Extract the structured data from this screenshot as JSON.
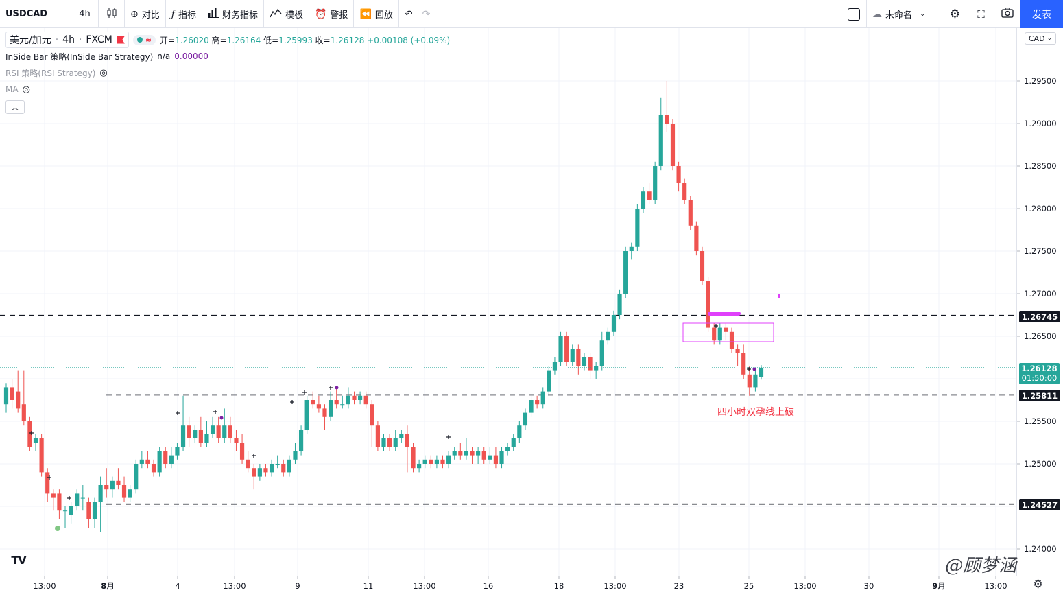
{
  "toolbar": {
    "symbol": "USDCAD",
    "interval": "4h",
    "compare": "对比",
    "indicators": "指标",
    "financials": "财务指标",
    "templates": "模板",
    "alert": "警报",
    "replay": "回放",
    "layout_name": "未命名",
    "publish": "发表"
  },
  "legend": {
    "symbol_name": "美元/加元",
    "interval": "4h",
    "exchange": "FXCM",
    "open_label": "开=",
    "open": "1.26020",
    "high_label": "高=",
    "high": "1.26164",
    "low_label": "低=",
    "low": "1.25993",
    "close_label": "收=",
    "close": "1.26128",
    "change": "+0.00108 (+0.09%)",
    "study1": "InSide Bar 策略(InSide Bar Strategy)",
    "study1_na": "n/a",
    "study1_value": "0.00000",
    "study2": "RSI 策略(RSI Strategy)",
    "study3": "MA"
  },
  "price_axis": {
    "currency": "CAD",
    "ticks": [
      "1.29500",
      "1.29000",
      "1.28500",
      "1.28000",
      "1.27500",
      "1.27000",
      "1.26500",
      "1.25500",
      "1.25000",
      "1.24000"
    ],
    "levels": [
      "1.26745",
      "1.25811",
      "1.24527"
    ],
    "current_price": "1.26128",
    "countdown": "01:50:00"
  },
  "time_axis": {
    "ticks": [
      "13:00",
      "8月",
      "4",
      "13:00",
      "9",
      "11",
      "13:00",
      "16",
      "18",
      "13:00",
      "23",
      "25",
      "13:00",
      "30",
      "9月",
      "13:00"
    ]
  },
  "annotation": "四小时双孕线上破",
  "watermark": "@顾梦涵",
  "logo": "TV",
  "colors": {
    "up": "#26a69a",
    "down": "#ef5350",
    "accent": "#2962ff",
    "box": "#e040fb",
    "annotation": "#f23645"
  },
  "chart_data": {
    "type": "candlestick",
    "ylim": [
      1.2385,
      1.2985
    ],
    "horizontal_levels": [
      1.26745,
      1.25811,
      1.24527
    ],
    "x_ticks": [
      "13:00",
      "8月",
      "4",
      "13:00",
      "9",
      "11",
      "13:00",
      "16",
      "18",
      "13:00",
      "23",
      "25",
      "13:00",
      "30",
      "9月",
      "13:00"
    ],
    "candles": [
      [
        1.257,
        1.259,
        1.256,
        1.2595
      ],
      [
        1.259,
        1.2575,
        1.2565,
        1.26
      ],
      [
        1.2585,
        1.2565,
        1.256,
        1.261
      ],
      [
        1.257,
        1.255,
        1.2545,
        1.261
      ],
      [
        1.255,
        1.252,
        1.2515,
        1.2555
      ],
      [
        1.2525,
        1.253,
        1.2515,
        1.2535
      ],
      [
        1.253,
        1.249,
        1.2485,
        1.2535
      ],
      [
        1.249,
        1.2465,
        1.2455,
        1.2495
      ],
      [
        1.2465,
        1.246,
        1.2445,
        1.247
      ],
      [
        1.2465,
        1.2445,
        1.2435,
        1.247
      ],
      [
        1.2445,
        1.2445,
        1.2425,
        1.245
      ],
      [
        1.244,
        1.245,
        1.243,
        1.2455
      ],
      [
        1.245,
        1.2465,
        1.2445,
        1.247
      ],
      [
        1.246,
        1.246,
        1.2445,
        1.2475
      ],
      [
        1.2455,
        1.2435,
        1.2425,
        1.246
      ],
      [
        1.2435,
        1.2455,
        1.2425,
        1.246
      ],
      [
        1.2455,
        1.2475,
        1.242,
        1.2485
      ],
      [
        1.2475,
        1.247,
        1.246,
        1.2495
      ],
      [
        1.247,
        1.248,
        1.246,
        1.2485
      ],
      [
        1.248,
        1.2475,
        1.247,
        1.2495
      ],
      [
        1.2475,
        1.246,
        1.2455,
        1.2485
      ],
      [
        1.246,
        1.247,
        1.2455,
        1.2475
      ],
      [
        1.247,
        1.25,
        1.2465,
        1.2505
      ],
      [
        1.25,
        1.2505,
        1.2495,
        1.2515
      ],
      [
        1.2505,
        1.25,
        1.2495,
        1.2515
      ],
      [
        1.25,
        1.249,
        1.2485,
        1.2505
      ],
      [
        1.249,
        1.2515,
        1.2485,
        1.252
      ],
      [
        1.2515,
        1.25,
        1.2495,
        1.252
      ],
      [
        1.25,
        1.251,
        1.2495,
        1.252
      ],
      [
        1.251,
        1.252,
        1.2505,
        1.2525
      ],
      [
        1.252,
        1.2545,
        1.2515,
        1.258
      ],
      [
        1.2545,
        1.253,
        1.252,
        1.2555
      ],
      [
        1.253,
        1.254,
        1.2525,
        1.2545
      ],
      [
        1.254,
        1.2525,
        1.252,
        1.2555
      ],
      [
        1.2525,
        1.2535,
        1.252,
        1.255
      ],
      [
        1.2535,
        1.2545,
        1.253,
        1.2555
      ],
      [
        1.2545,
        1.253,
        1.2525,
        1.2555
      ],
      [
        1.253,
        1.2545,
        1.2525,
        1.2565
      ],
      [
        1.2545,
        1.253,
        1.2525,
        1.2555
      ],
      [
        1.253,
        1.2525,
        1.2515,
        1.254
      ],
      [
        1.2525,
        1.2505,
        1.25,
        1.2535
      ],
      [
        1.2505,
        1.2495,
        1.249,
        1.2515
      ],
      [
        1.2495,
        1.2485,
        1.247,
        1.25
      ],
      [
        1.2485,
        1.2495,
        1.248,
        1.25
      ],
      [
        1.2495,
        1.249,
        1.2485,
        1.25
      ],
      [
        1.249,
        1.25,
        1.2485,
        1.2505
      ],
      [
        1.25,
        1.25,
        1.2495,
        1.251
      ],
      [
        1.25,
        1.249,
        1.2485,
        1.2505
      ],
      [
        1.249,
        1.2505,
        1.2485,
        1.251
      ],
      [
        1.2505,
        1.2515,
        1.25,
        1.2525
      ],
      [
        1.2515,
        1.254,
        1.251,
        1.2545
      ],
      [
        1.254,
        1.2575,
        1.2535,
        1.258
      ],
      [
        1.2575,
        1.257,
        1.2565,
        1.2585
      ],
      [
        1.257,
        1.2565,
        1.256,
        1.258
      ],
      [
        1.2565,
        1.2555,
        1.254,
        1.257
      ],
      [
        1.2555,
        1.2575,
        1.255,
        1.2585
      ],
      [
        1.2575,
        1.257,
        1.2565,
        1.259
      ],
      [
        1.257,
        1.257,
        1.2565,
        1.258
      ],
      [
        1.257,
        1.258,
        1.2565,
        1.259
      ],
      [
        1.258,
        1.2575,
        1.257,
        1.2585
      ],
      [
        1.2575,
        1.258,
        1.257,
        1.2585
      ],
      [
        1.258,
        1.257,
        1.2565,
        1.2585
      ],
      [
        1.257,
        1.2545,
        1.252,
        1.2575
      ],
      [
        1.2545,
        1.252,
        1.2515,
        1.255
      ],
      [
        1.252,
        1.253,
        1.2515,
        1.2535
      ],
      [
        1.253,
        1.252,
        1.2515,
        1.2535
      ],
      [
        1.252,
        1.253,
        1.2515,
        1.254
      ],
      [
        1.253,
        1.2535,
        1.2525,
        1.254
      ],
      [
        1.2535,
        1.252,
        1.249,
        1.2545
      ],
      [
        1.252,
        1.2495,
        1.249,
        1.2525
      ],
      [
        1.2495,
        1.25,
        1.249,
        1.2505
      ],
      [
        1.25,
        1.2505,
        1.2495,
        1.251
      ],
      [
        1.2505,
        1.25,
        1.2495,
        1.251
      ],
      [
        1.25,
        1.2505,
        1.2495,
        1.251
      ],
      [
        1.2505,
        1.25,
        1.2495,
        1.251
      ],
      [
        1.25,
        1.251,
        1.2495,
        1.2515
      ],
      [
        1.251,
        1.2515,
        1.2505,
        1.252
      ],
      [
        1.2515,
        1.251,
        1.2505,
        1.2525
      ],
      [
        1.251,
        1.2515,
        1.2505,
        1.253
      ],
      [
        1.2515,
        1.251,
        1.25,
        1.252
      ],
      [
        1.251,
        1.2515,
        1.25,
        1.252
      ],
      [
        1.2515,
        1.2505,
        1.25,
        1.252
      ],
      [
        1.2505,
        1.251,
        1.25,
        1.252
      ],
      [
        1.251,
        1.25,
        1.2495,
        1.252
      ],
      [
        1.25,
        1.2515,
        1.2495,
        1.252
      ],
      [
        1.2515,
        1.252,
        1.251,
        1.2525
      ],
      [
        1.252,
        1.253,
        1.2515,
        1.2535
      ],
      [
        1.253,
        1.2545,
        1.2525,
        1.255
      ],
      [
        1.2545,
        1.256,
        1.254,
        1.2565
      ],
      [
        1.256,
        1.2575,
        1.2555,
        1.258
      ],
      [
        1.2575,
        1.257,
        1.2565,
        1.258
      ],
      [
        1.257,
        1.2585,
        1.2565,
        1.259
      ],
      [
        1.2585,
        1.261,
        1.258,
        1.2615
      ],
      [
        1.261,
        1.262,
        1.2605,
        1.2625
      ],
      [
        1.262,
        1.265,
        1.2615,
        1.2655
      ],
      [
        1.265,
        1.262,
        1.2615,
        1.2655
      ],
      [
        1.262,
        1.2635,
        1.2615,
        1.264
      ],
      [
        1.2635,
        1.2615,
        1.2605,
        1.264
      ],
      [
        1.2615,
        1.2625,
        1.261,
        1.263
      ],
      [
        1.2625,
        1.261,
        1.26,
        1.263
      ],
      [
        1.261,
        1.2615,
        1.26,
        1.262
      ],
      [
        1.2615,
        1.2645,
        1.261,
        1.2655
      ],
      [
        1.2645,
        1.2655,
        1.264,
        1.266
      ],
      [
        1.2655,
        1.2675,
        1.265,
        1.268
      ],
      [
        1.2675,
        1.27,
        1.267,
        1.2705
      ],
      [
        1.27,
        1.275,
        1.2695,
        1.2755
      ],
      [
        1.275,
        1.2755,
        1.274,
        1.276
      ],
      [
        1.2755,
        1.28,
        1.275,
        1.2805
      ],
      [
        1.28,
        1.282,
        1.2795,
        1.2825
      ],
      [
        1.282,
        1.281,
        1.2805,
        1.283
      ],
      [
        1.281,
        1.285,
        1.2805,
        1.2855
      ],
      [
        1.285,
        1.291,
        1.2845,
        1.293
      ],
      [
        1.291,
        1.29,
        1.289,
        1.295
      ],
      [
        1.29,
        1.285,
        1.2845,
        1.2905
      ],
      [
        1.285,
        1.283,
        1.282,
        1.2855
      ],
      [
        1.283,
        1.281,
        1.2805,
        1.2835
      ],
      [
        1.281,
        1.278,
        1.2775,
        1.2815
      ],
      [
        1.278,
        1.275,
        1.2745,
        1.2785
      ],
      [
        1.275,
        1.2715,
        1.271,
        1.2755
      ],
      [
        1.2715,
        1.266,
        1.2655,
        1.272
      ],
      [
        1.266,
        1.2645,
        1.264,
        1.2665
      ],
      [
        1.2645,
        1.266,
        1.264,
        1.2665
      ],
      [
        1.266,
        1.2655,
        1.2645,
        1.2665
      ],
      [
        1.2655,
        1.2635,
        1.263,
        1.266
      ],
      [
        1.2635,
        1.263,
        1.2615,
        1.264
      ],
      [
        1.263,
        1.2605,
        1.26,
        1.264
      ],
      [
        1.2605,
        1.259,
        1.258,
        1.2615
      ],
      [
        1.259,
        1.2605,
        1.2585,
        1.261
      ],
      [
        1.2602,
        1.2613,
        1.2599,
        1.2616
      ]
    ]
  }
}
